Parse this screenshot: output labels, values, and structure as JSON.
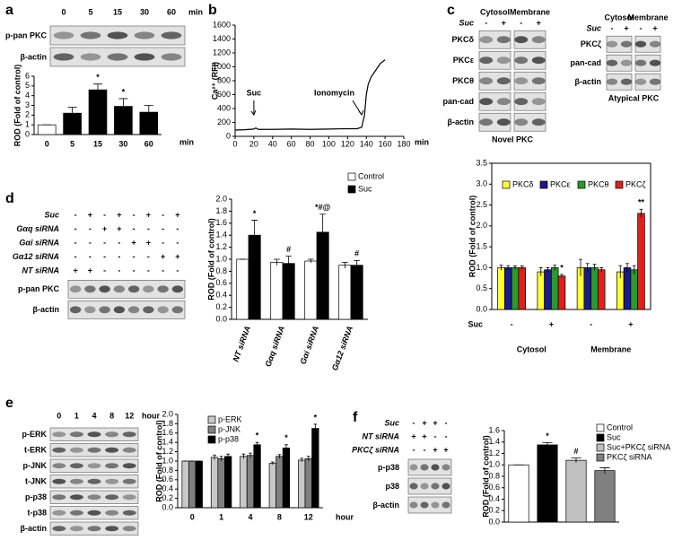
{
  "panels": [
    "a",
    "b",
    "c",
    "d",
    "e",
    "f"
  ],
  "blots": [
    {
      "lanes": [
        "0",
        "5",
        "15",
        "30",
        "60"
      ],
      "unit": "min",
      "rows": [
        "p-pan PKC",
        "β-actin"
      ]
    },
    {
      "groups": [
        "Cytosol",
        "Membrane"
      ],
      "conditions": [
        {
          "label": "Suc",
          "signs": [
            "-",
            "+",
            "-",
            "+"
          ]
        }
      ],
      "rows": [
        "PKCδ",
        "PKCε",
        "PKCθ",
        "pan-cad",
        "β-actin"
      ],
      "caption": "Novel PKC"
    },
    {
      "groups": [
        "Cytosol",
        "Membrane"
      ],
      "conditions": [
        {
          "label": "Suc",
          "signs": [
            "-",
            "+",
            "-",
            "+"
          ]
        }
      ],
      "rows": [
        "PKCζ",
        "pan-cad",
        "β-actin"
      ],
      "caption": "Atypical PKC"
    },
    {
      "conditions": [
        {
          "label": "Suc",
          "signs": [
            "-",
            "+",
            "-",
            "+",
            "-",
            "+",
            "-",
            "+"
          ]
        },
        {
          "label": "Gαq siRNA",
          "signs": [
            "-",
            "-",
            "+",
            "+",
            "-",
            "-",
            "-",
            "-"
          ]
        },
        {
          "label": "Gαi siRNA",
          "signs": [
            "-",
            "-",
            "-",
            "-",
            "+",
            "+",
            "-",
            "-"
          ]
        },
        {
          "label": "Gα12 siRNA",
          "signs": [
            "-",
            "-",
            "-",
            "-",
            "-",
            "-",
            "+",
            "+"
          ]
        },
        {
          "label": "NT siRNA",
          "signs": [
            "+",
            "+",
            "-",
            "-",
            "-",
            "-",
            "-",
            "-"
          ]
        }
      ],
      "rows": [
        "p-pan PKC",
        "β-actin"
      ]
    },
    {
      "lanes": [
        "0",
        "1",
        "4",
        "8",
        "12"
      ],
      "unit": "hour",
      "rows": [
        "p-ERK",
        "t-ERK",
        "p-JNK",
        "t-JNK",
        "p-p38",
        "t-p38",
        "β-actin"
      ]
    },
    {
      "conditions": [
        {
          "label": "Suc",
          "signs": [
            "-",
            "+",
            "+",
            "-"
          ]
        },
        {
          "label": "NT siRNA",
          "signs": [
            "+",
            "+",
            "-",
            "-"
          ]
        },
        {
          "label": "PKCζ siRNA",
          "signs": [
            "-",
            "-",
            "+",
            "+"
          ]
        }
      ],
      "rows": [
        "p-p38",
        "p38",
        "β-actin"
      ]
    }
  ],
  "chart_data": [
    {
      "type": "bar",
      "ylabel": "ROD (Fold of control)",
      "xlabel": "min",
      "categories": [
        "0",
        "5",
        "15",
        "30",
        "60"
      ],
      "values": [
        1.0,
        2.2,
        4.6,
        2.9,
        2.3
      ],
      "errors": [
        0.0,
        0.6,
        0.6,
        0.8,
        0.7
      ],
      "colors": [
        "#ffffff",
        "#000000",
        "#000000",
        "#000000",
        "#000000"
      ],
      "ylim": [
        0,
        6
      ],
      "yticks": [
        0,
        1,
        2,
        3,
        4,
        5,
        6
      ],
      "annotations": [
        {
          "text": "*",
          "index": 2
        },
        {
          "text": "*",
          "index": 3
        }
      ]
    },
    {
      "type": "line",
      "ylabel": "Ca²⁺ (RFI)",
      "xlabel": "min",
      "color": "#000000",
      "x": [
        0,
        10,
        20,
        22,
        25,
        40,
        60,
        80,
        100,
        120,
        130,
        135,
        138,
        140,
        142,
        145,
        150,
        155,
        160
      ],
      "values": [
        90,
        95,
        105,
        120,
        100,
        100,
        105,
        100,
        105,
        110,
        110,
        130,
        300,
        600,
        750,
        850,
        950,
        1050,
        1100
      ],
      "xlim": [
        0,
        180
      ],
      "xticks": [
        0,
        20,
        40,
        60,
        80,
        100,
        120,
        140,
        160,
        180
      ],
      "ylim": [
        0,
        1600
      ],
      "yticks": [
        0,
        200,
        400,
        600,
        800,
        1000,
        1200,
        1400,
        1600
      ],
      "annotations": [
        {
          "text": "Suc",
          "x": 20
        },
        {
          "text": "Ionomycin",
          "x": 135
        }
      ]
    },
    {
      "type": "bar",
      "ylabel": "ROD (Fold of control)",
      "xlabel": "Suc",
      "legend": "upper left",
      "categories": [
        "-",
        "+",
        "-",
        "+"
      ],
      "groups": [
        "Cytosol",
        "Membrane"
      ],
      "series": [
        {
          "name": "PKCδ",
          "color": "#ffff33",
          "values": [
            1.0,
            0.9,
            1.0,
            0.9
          ],
          "errors": [
            0.06,
            0.1,
            0.2,
            0.15
          ]
        },
        {
          "name": "PKCε",
          "color": "#1a1a8c",
          "values": [
            1.0,
            0.95,
            1.0,
            1.0
          ],
          "errors": [
            0.05,
            0.05,
            0.1,
            0.1
          ]
        },
        {
          "name": "PKCθ",
          "color": "#2a9a2a",
          "values": [
            1.0,
            1.0,
            1.0,
            0.95
          ],
          "errors": [
            0.04,
            0.06,
            0.08,
            0.1
          ]
        },
        {
          "name": "PKCζ",
          "color": "#e0201a",
          "values": [
            1.0,
            0.8,
            0.95,
            2.3
          ],
          "errors": [
            0.04,
            0.04,
            0.05,
            0.1
          ]
        }
      ],
      "ylim": [
        0,
        3.5
      ],
      "yticks": [
        {
          "value": 0,
          "label": "0.0"
        },
        {
          "value": 0.5,
          "label": "0.5"
        },
        {
          "value": 1,
          "label": "1.0"
        },
        {
          "value": 1.5,
          "label": "1.5"
        },
        {
          "value": 2,
          "label": "2.0"
        },
        {
          "value": 2.5,
          "label": "2.5"
        },
        {
          "value": 3,
          "label": "3.0"
        },
        {
          "value": 3.5,
          "label": "3.5"
        }
      ],
      "annotations": [
        {
          "text": "*",
          "index": 1,
          "series": 3
        },
        {
          "text": "**",
          "index": 3,
          "series": 3
        }
      ]
    },
    {
      "type": "bar",
      "ylabel": "ROD (Fold of control)",
      "legend": "above right",
      "xtick_rotation": -70,
      "categories": [
        "NT siRNA",
        "Gαq siRNA",
        "Gαi siRNA",
        "Gα12 siRNA"
      ],
      "series": [
        {
          "name": "Control",
          "color": "#ffffff",
          "values": [
            1.0,
            0.95,
            0.97,
            0.9
          ],
          "errors": [
            0.0,
            0.05,
            0.03,
            0.05
          ]
        },
        {
          "name": "Suc",
          "color": "#000000",
          "values": [
            1.4,
            0.93,
            1.45,
            0.9
          ],
          "errors": [
            0.25,
            0.12,
            0.3,
            0.08
          ]
        }
      ],
      "ylim": [
        0,
        2
      ],
      "yticks": [
        {
          "value": 0,
          "label": "0.0"
        },
        {
          "value": 0.2,
          "label": "0.2"
        },
        {
          "value": 0.4,
          "label": "0.4"
        },
        {
          "value": 0.6,
          "label": "0.6"
        },
        {
          "value": 0.8,
          "label": "0.8"
        },
        {
          "value": 1,
          "label": "1.0"
        },
        {
          "value": 1.2,
          "label": "1.2"
        },
        {
          "value": 1.4,
          "label": "1.4"
        },
        {
          "value": 1.6,
          "label": "1.6"
        },
        {
          "value": 1.8,
          "label": "1.8"
        },
        {
          "value": 2,
          "label": "2.0"
        }
      ],
      "annotations": [
        {
          "text": "*",
          "index": 0,
          "series": 1
        },
        {
          "text": "#",
          "index": 1,
          "series": 1
        },
        {
          "text": "*#@",
          "index": 2,
          "series": 1
        },
        {
          "text": "#",
          "index": 3,
          "series": 1
        }
      ]
    },
    {
      "type": "bar",
      "ylabel": "ROD (Fold of control)",
      "xlabel": "hour",
      "legend": "upper left",
      "categories": [
        "0",
        "1",
        "4",
        "8",
        "12"
      ],
      "series": [
        {
          "name": "p-ERK",
          "color": "#c8c8c8",
          "values": [
            1.0,
            1.08,
            1.1,
            0.95,
            1.02
          ],
          "errors": [
            0.0,
            0.05,
            0.05,
            0.03,
            0.04
          ]
        },
        {
          "name": "p-JNK",
          "color": "#808080",
          "values": [
            1.0,
            1.05,
            1.12,
            1.1,
            1.05
          ],
          "errors": [
            0.0,
            0.05,
            0.05,
            0.04,
            0.05
          ]
        },
        {
          "name": "p-p38",
          "color": "#000000",
          "values": [
            1.0,
            1.1,
            1.35,
            1.28,
            1.7
          ],
          "errors": [
            0.0,
            0.05,
            0.05,
            0.07,
            0.09
          ]
        }
      ],
      "ylim": [
        0,
        2
      ],
      "yticks": [
        {
          "value": 0,
          "label": "0.0"
        },
        {
          "value": 0.2,
          "label": "0.2"
        },
        {
          "value": 0.4,
          "label": "0.4"
        },
        {
          "value": 0.6,
          "label": "0.6"
        },
        {
          "value": 0.8,
          "label": "0.8"
        },
        {
          "value": 1,
          "label": "1.0"
        },
        {
          "value": 1.2,
          "label": "1.2"
        },
        {
          "value": 1.4,
          "label": "1.4"
        },
        {
          "value": 1.6,
          "label": "1.6"
        },
        {
          "value": 1.8,
          "label": "1.8"
        },
        {
          "value": 2,
          "label": "2.0"
        }
      ],
      "annotations": [
        {
          "text": "*",
          "index": 2,
          "series": 2
        },
        {
          "text": "*",
          "index": 3,
          "series": 2
        },
        {
          "text": "*",
          "index": 4,
          "series": 2
        }
      ]
    },
    {
      "type": "bar",
      "ylabel": "ROD (Fold of control)",
      "legend": "above right",
      "categories": [
        "Control",
        "Suc",
        "Suc+PKCζ siRNA",
        "PKCζ siRNA"
      ],
      "values": [
        1.0,
        1.35,
        1.08,
        0.9
      ],
      "errors": [
        0.0,
        0.04,
        0.04,
        0.05
      ],
      "colors": [
        "#ffffff",
        "#000000",
        "#c0c0c0",
        "#808080"
      ],
      "ylim": [
        0,
        1.6
      ],
      "yticks": [
        {
          "value": 0,
          "label": "0.0"
        },
        {
          "value": 0.2,
          "label": "0.2"
        },
        {
          "value": 0.4,
          "label": "0.4"
        },
        {
          "value": 0.6,
          "label": "0.6"
        },
        {
          "value": 0.8,
          "label": "0.8"
        },
        {
          "value": 1,
          "label": "1.0"
        },
        {
          "value": 1.2,
          "label": "1.2"
        },
        {
          "value": 1.4,
          "label": "1.4"
        },
        {
          "value": 1.6,
          "label": "1.6"
        }
      ],
      "annotations": [
        {
          "text": "*",
          "index": 1
        },
        {
          "text": "#",
          "index": 2
        }
      ]
    }
  ]
}
